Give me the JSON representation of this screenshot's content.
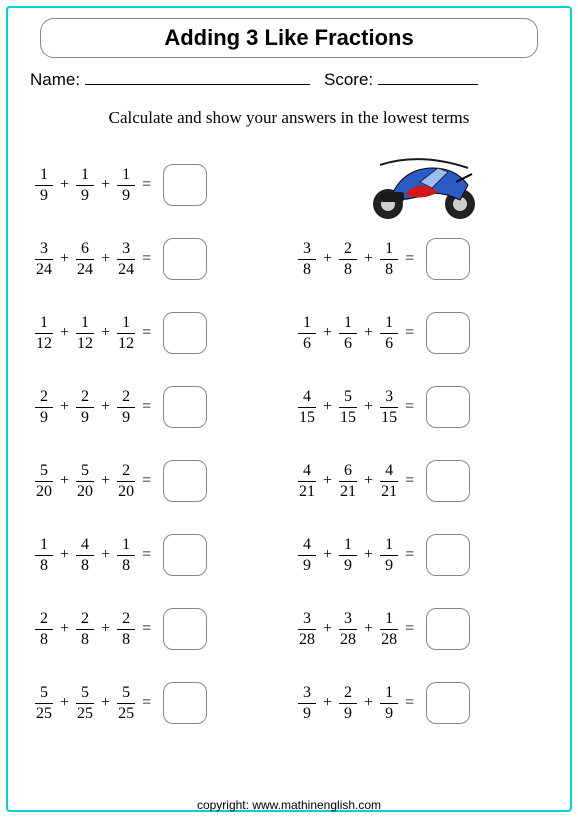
{
  "title": "Adding 3 Like Fractions",
  "name_label": "Name:",
  "score_label": "Score:",
  "instruction": "Calculate and show your answers in the lowest terms",
  "footer": "copyright:   www.mathinenglish.com",
  "colors": {
    "border": "#00d0d0",
    "box_border": "#888888",
    "text": "#000000",
    "moto_body": "#2b5bc4",
    "moto_accent": "#d01818",
    "moto_tire": "#222222"
  },
  "problems": [
    {
      "f": [
        [
          1,
          9
        ],
        [
          1,
          9
        ],
        [
          1,
          9
        ]
      ]
    },
    {
      "image": true
    },
    {
      "f": [
        [
          3,
          24
        ],
        [
          6,
          24
        ],
        [
          3,
          24
        ]
      ]
    },
    {
      "f": [
        [
          3,
          8
        ],
        [
          2,
          8
        ],
        [
          1,
          8
        ]
      ]
    },
    {
      "f": [
        [
          1,
          12
        ],
        [
          1,
          12
        ],
        [
          1,
          12
        ]
      ]
    },
    {
      "f": [
        [
          1,
          6
        ],
        [
          1,
          6
        ],
        [
          1,
          6
        ]
      ]
    },
    {
      "f": [
        [
          2,
          9
        ],
        [
          2,
          9
        ],
        [
          2,
          9
        ]
      ]
    },
    {
      "f": [
        [
          4,
          15
        ],
        [
          5,
          15
        ],
        [
          3,
          15
        ]
      ]
    },
    {
      "f": [
        [
          5,
          20
        ],
        [
          5,
          20
        ],
        [
          2,
          20
        ]
      ]
    },
    {
      "f": [
        [
          4,
          21
        ],
        [
          6,
          21
        ],
        [
          4,
          21
        ]
      ]
    },
    {
      "f": [
        [
          1,
          8
        ],
        [
          4,
          8
        ],
        [
          1,
          8
        ]
      ]
    },
    {
      "f": [
        [
          4,
          9
        ],
        [
          1,
          9
        ],
        [
          1,
          9
        ]
      ]
    },
    {
      "f": [
        [
          2,
          8
        ],
        [
          2,
          8
        ],
        [
          2,
          8
        ]
      ]
    },
    {
      "f": [
        [
          3,
          28
        ],
        [
          3,
          28
        ],
        [
          1,
          28
        ]
      ]
    },
    {
      "f": [
        [
          5,
          25
        ],
        [
          5,
          25
        ],
        [
          5,
          25
        ]
      ]
    },
    {
      "f": [
        [
          3,
          9
        ],
        [
          2,
          9
        ],
        [
          1,
          9
        ]
      ]
    }
  ]
}
